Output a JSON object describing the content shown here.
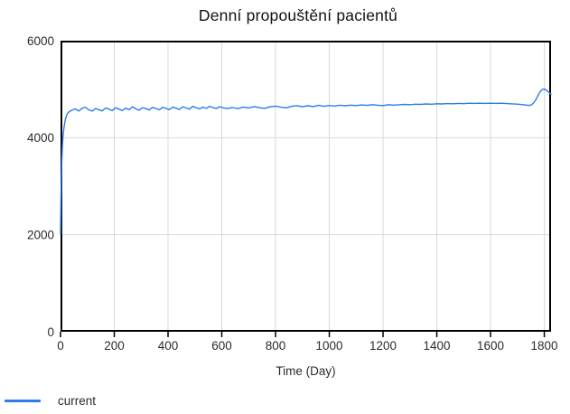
{
  "chart_data": {
    "type": "line",
    "title": "Denní propouštění pacientů",
    "xlabel": "Time (Day)",
    "ylabel": "",
    "xlim": [
      0,
      1825
    ],
    "ylim": [
      0,
      6000
    ],
    "x_ticks": [
      0,
      200,
      400,
      600,
      800,
      1000,
      1200,
      1400,
      1600,
      1800
    ],
    "y_ticks": [
      0,
      2000,
      4000,
      6000
    ],
    "grid": true,
    "legend_position": "bottom-left",
    "colors": {
      "line": "#2b7ce9",
      "grid": "#d9d9d9",
      "axis": "#000000",
      "text": "#2b2b2b",
      "title_text": "#111111"
    },
    "series": [
      {
        "name": "current",
        "color": "#2b7ce9",
        "points": [
          [
            0,
            2020
          ],
          [
            1,
            2500
          ],
          [
            2,
            2850
          ],
          [
            3,
            3130
          ],
          [
            4,
            3360
          ],
          [
            5,
            3550
          ],
          [
            7,
            3820
          ],
          [
            9,
            4000
          ],
          [
            12,
            4170
          ],
          [
            15,
            4290
          ],
          [
            18,
            4380
          ],
          [
            22,
            4450
          ],
          [
            26,
            4500
          ],
          [
            31,
            4530
          ],
          [
            36,
            4550
          ],
          [
            42,
            4565
          ],
          [
            55,
            4595
          ],
          [
            68,
            4550
          ],
          [
            80,
            4605
          ],
          [
            92,
            4630
          ],
          [
            105,
            4575
          ],
          [
            118,
            4548
          ],
          [
            130,
            4602
          ],
          [
            142,
            4578
          ],
          [
            155,
            4552
          ],
          [
            168,
            4612
          ],
          [
            180,
            4590
          ],
          [
            192,
            4558
          ],
          [
            205,
            4618
          ],
          [
            218,
            4588
          ],
          [
            230,
            4560
          ],
          [
            242,
            4608
          ],
          [
            255,
            4578
          ],
          [
            268,
            4638
          ],
          [
            280,
            4595
          ],
          [
            292,
            4565
          ],
          [
            305,
            4618
          ],
          [
            318,
            4598
          ],
          [
            330,
            4570
          ],
          [
            342,
            4625
          ],
          [
            355,
            4602
          ],
          [
            368,
            4575
          ],
          [
            380,
            4628
          ],
          [
            392,
            4605
          ],
          [
            405,
            4580
          ],
          [
            418,
            4632
          ],
          [
            430,
            4608
          ],
          [
            442,
            4582
          ],
          [
            455,
            4638
          ],
          [
            468,
            4612
          ],
          [
            480,
            4590
          ],
          [
            492,
            4645
          ],
          [
            505,
            4618
          ],
          [
            518,
            4595
          ],
          [
            530,
            4630
          ],
          [
            542,
            4605
          ],
          [
            555,
            4648
          ],
          [
            568,
            4620
          ],
          [
            580,
            4600
          ],
          [
            592,
            4640
          ],
          [
            605,
            4615
          ],
          [
            620,
            4600
          ],
          [
            640,
            4622
          ],
          [
            660,
            4598
          ],
          [
            680,
            4632
          ],
          [
            700,
            4612
          ],
          [
            720,
            4642
          ],
          [
            740,
            4618
          ],
          [
            760,
            4605
          ],
          [
            780,
            4638
          ],
          [
            800,
            4650
          ],
          [
            820,
            4628
          ],
          [
            840,
            4615
          ],
          [
            860,
            4648
          ],
          [
            880,
            4660
          ],
          [
            900,
            4638
          ],
          [
            920,
            4658
          ],
          [
            940,
            4642
          ],
          [
            960,
            4665
          ],
          [
            980,
            4648
          ],
          [
            1000,
            4662
          ],
          [
            1020,
            4652
          ],
          [
            1040,
            4670
          ],
          [
            1060,
            4658
          ],
          [
            1080,
            4672
          ],
          [
            1100,
            4662
          ],
          [
            1120,
            4676
          ],
          [
            1140,
            4666
          ],
          [
            1160,
            4680
          ],
          [
            1180,
            4670
          ],
          [
            1200,
            4662
          ],
          [
            1220,
            4680
          ],
          [
            1240,
            4672
          ],
          [
            1260,
            4678
          ],
          [
            1280,
            4686
          ],
          [
            1300,
            4680
          ],
          [
            1320,
            4690
          ],
          [
            1340,
            4686
          ],
          [
            1360,
            4695
          ],
          [
            1380,
            4690
          ],
          [
            1400,
            4700
          ],
          [
            1420,
            4696
          ],
          [
            1440,
            4704
          ],
          [
            1460,
            4700
          ],
          [
            1480,
            4706
          ],
          [
            1500,
            4702
          ],
          [
            1520,
            4710
          ],
          [
            1540,
            4706
          ],
          [
            1560,
            4710
          ],
          [
            1580,
            4706
          ],
          [
            1600,
            4710
          ],
          [
            1620,
            4706
          ],
          [
            1640,
            4710
          ],
          [
            1660,
            4704
          ],
          [
            1680,
            4698
          ],
          [
            1700,
            4692
          ],
          [
            1720,
            4680
          ],
          [
            1740,
            4665
          ],
          [
            1750,
            4672
          ],
          [
            1758,
            4705
          ],
          [
            1766,
            4760
          ],
          [
            1774,
            4840
          ],
          [
            1782,
            4930
          ],
          [
            1790,
            4985
          ],
          [
            1798,
            5005
          ],
          [
            1806,
            4985
          ],
          [
            1814,
            4950
          ],
          [
            1820,
            4920
          ],
          [
            1825,
            4895
          ]
        ]
      }
    ]
  },
  "legend": {
    "items": [
      {
        "label": "current",
        "color": "#2b7ce9"
      }
    ]
  }
}
